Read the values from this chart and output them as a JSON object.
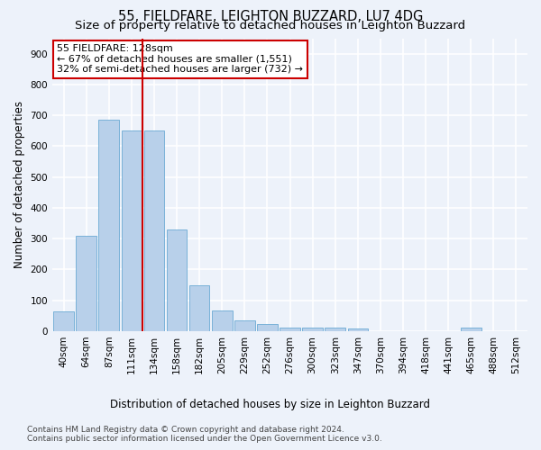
{
  "title": "55, FIELDFARE, LEIGHTON BUZZARD, LU7 4DG",
  "subtitle": "Size of property relative to detached houses in Leighton Buzzard",
  "xlabel": "Distribution of detached houses by size in Leighton Buzzard",
  "ylabel": "Number of detached properties",
  "footer_line1": "Contains HM Land Registry data © Crown copyright and database right 2024.",
  "footer_line2": "Contains public sector information licensed under the Open Government Licence v3.0.",
  "categories": [
    "40sqm",
    "64sqm",
    "87sqm",
    "111sqm",
    "134sqm",
    "158sqm",
    "182sqm",
    "205sqm",
    "229sqm",
    "252sqm",
    "276sqm",
    "300sqm",
    "323sqm",
    "347sqm",
    "370sqm",
    "394sqm",
    "418sqm",
    "441sqm",
    "465sqm",
    "488sqm",
    "512sqm"
  ],
  "values": [
    63,
    310,
    686,
    651,
    652,
    330,
    150,
    68,
    35,
    22,
    12,
    12,
    12,
    10,
    0,
    0,
    0,
    0,
    12,
    0,
    0
  ],
  "bar_color": "#b8d0ea",
  "bar_edge_color": "#6aaad4",
  "vline_x": 3.5,
  "annotation_line1": "55 FIELDFARE: 128sqm",
  "annotation_line2": "← 67% of detached houses are smaller (1,551)",
  "annotation_line3": "32% of semi-detached houses are larger (732) →",
  "annotation_box_color": "#ffffff",
  "annotation_box_edge": "#cc0000",
  "ylim": [
    0,
    950
  ],
  "yticks": [
    0,
    100,
    200,
    300,
    400,
    500,
    600,
    700,
    800,
    900
  ],
  "bg_color": "#edf2fa",
  "grid_color": "#ffffff",
  "title_fontsize": 10.5,
  "subtitle_fontsize": 9.5,
  "axis_label_fontsize": 8.5,
  "tick_fontsize": 7.5,
  "annotation_fontsize": 8,
  "footer_fontsize": 6.5
}
